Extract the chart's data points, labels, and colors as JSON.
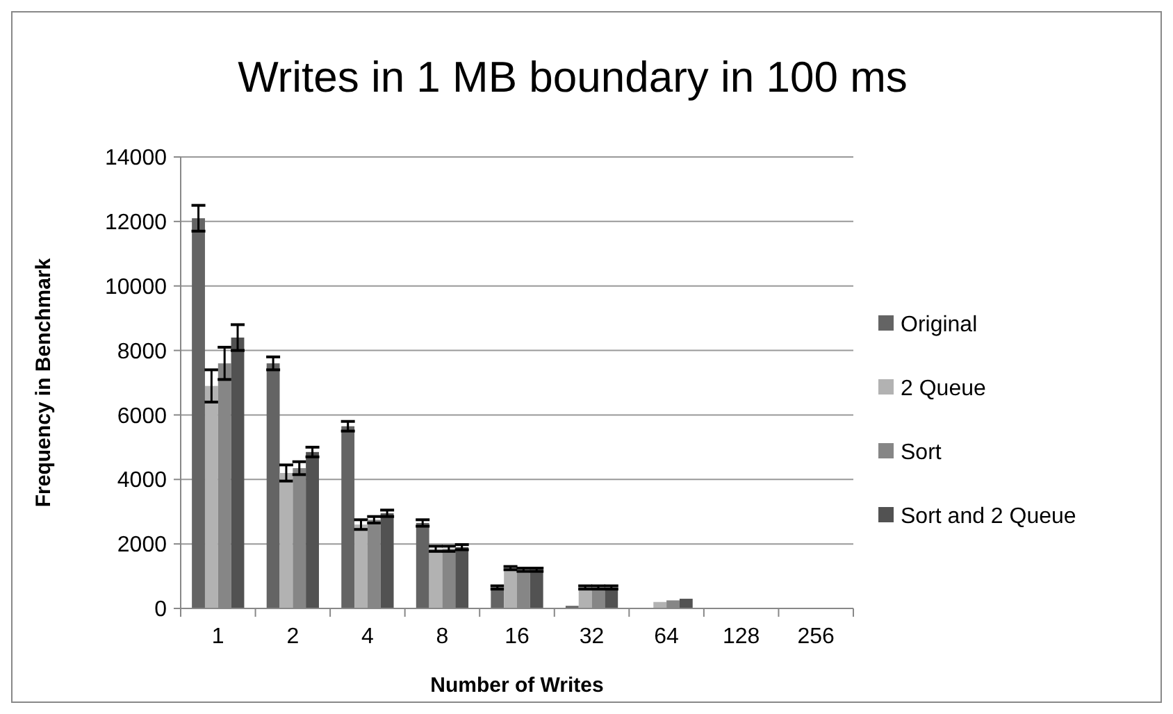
{
  "chart_data": {
    "type": "bar",
    "title": "Writes in 1 MB boundary in 100 ms",
    "xlabel": "Number of Writes",
    "ylabel": "Frequency in Benchmark",
    "categories": [
      "1",
      "2",
      "4",
      "8",
      "16",
      "32",
      "64",
      "128",
      "256"
    ],
    "series": [
      {
        "name": "Original",
        "color": "#646464",
        "values": [
          12100,
          7600,
          5650,
          2650,
          650,
          80,
          20,
          null,
          null
        ],
        "errors": [
          400,
          200,
          150,
          100,
          50,
          null,
          null,
          null,
          null
        ]
      },
      {
        "name": "2 Queue",
        "color": "#b2b2b2",
        "values": [
          6900,
          4200,
          2600,
          1850,
          1250,
          650,
          200,
          null,
          null
        ],
        "errors": [
          500,
          250,
          150,
          80,
          50,
          50,
          null,
          null,
          null
        ]
      },
      {
        "name": "Sort",
        "color": "#868686",
        "values": [
          7600,
          4350,
          2750,
          1850,
          1200,
          650,
          250,
          null,
          null
        ],
        "errors": [
          500,
          200,
          100,
          80,
          50,
          50,
          null,
          null,
          null
        ]
      },
      {
        "name": "Sort and 2 Queue",
        "color": "#525252",
        "values": [
          8400,
          4850,
          2950,
          1900,
          1200,
          650,
          300,
          null,
          null
        ],
        "errors": [
          400,
          150,
          100,
          80,
          50,
          50,
          null,
          null,
          null
        ]
      }
    ],
    "ylim": [
      0,
      14000
    ],
    "yticks": [
      0,
      2000,
      4000,
      6000,
      8000,
      10000,
      12000,
      14000
    ],
    "grid": "y",
    "legend": "right"
  }
}
